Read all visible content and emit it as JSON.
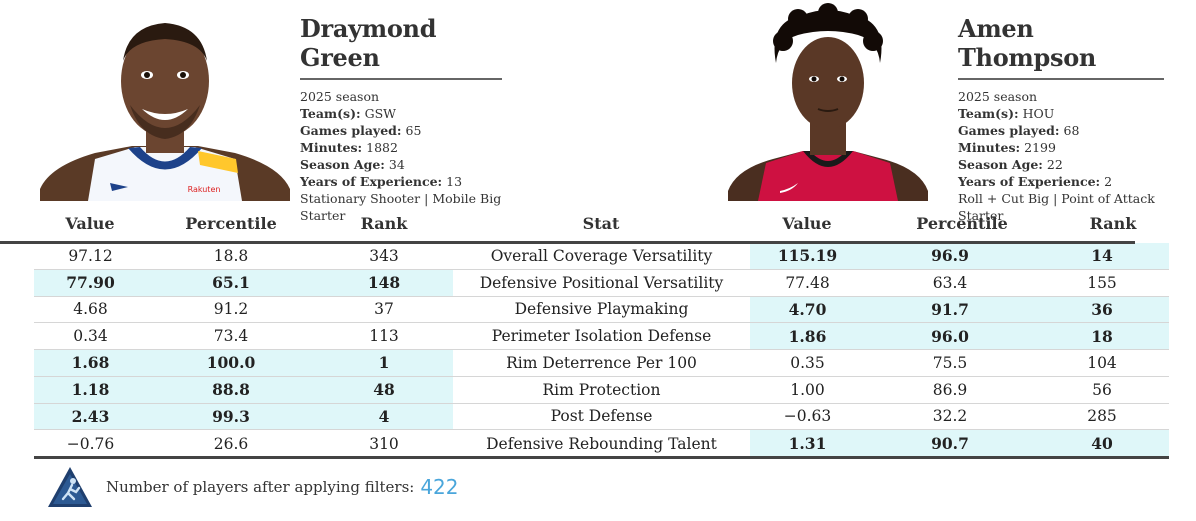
{
  "left_player": {
    "name": "Draymond Green",
    "season": "2025 season",
    "teams_label": "Team(s):",
    "teams": "GSW",
    "games_label": "Games played:",
    "games": "65",
    "minutes_label": "Minutes:",
    "minutes": "1882",
    "age_label": "Season Age:",
    "age": "34",
    "exp_label": "Years of Experience:",
    "exp": "13",
    "archetype": "Stationary Shooter | Mobile Big",
    "role": "Starter",
    "jersey_color": "#f4f7fc",
    "trim_color": "#1d428a",
    "accent_color": "#ffc72c"
  },
  "right_player": {
    "name": "Amen Thompson",
    "season": "2025 season",
    "teams_label": "Team(s):",
    "teams": "HOU",
    "games_label": "Games played:",
    "games": "68",
    "minutes_label": "Minutes:",
    "minutes": "2199",
    "age_label": "Season Age:",
    "age": "22",
    "exp_label": "Years of Experience:",
    "exp": "2",
    "archetype": "Roll + Cut Big | Point of Attack",
    "role": "Starter",
    "jersey_color": "#ce1141"
  },
  "columns": {
    "left_value": "Value",
    "left_percentile": "Percentile",
    "left_rank": "Rank",
    "stat": "Stat",
    "right_value": "Value",
    "right_percentile": "Percentile",
    "right_rank": "Rank"
  },
  "rows": [
    {
      "stat": "Overall Coverage Versatility",
      "l_value": "97.12",
      "l_pct": "18.8",
      "l_rank": "343",
      "r_value": "115.19",
      "r_pct": "96.9",
      "r_rank": "14",
      "winner": "right"
    },
    {
      "stat": "Defensive Positional Versatility",
      "l_value": "77.90",
      "l_pct": "65.1",
      "l_rank": "148",
      "r_value": "77.48",
      "r_pct": "63.4",
      "r_rank": "155",
      "winner": "left"
    },
    {
      "stat": "Defensive Playmaking",
      "l_value": "4.68",
      "l_pct": "91.2",
      "l_rank": "37",
      "r_value": "4.70",
      "r_pct": "91.7",
      "r_rank": "36",
      "winner": "right"
    },
    {
      "stat": "Perimeter Isolation Defense",
      "l_value": "0.34",
      "l_pct": "73.4",
      "l_rank": "113",
      "r_value": "1.86",
      "r_pct": "96.0",
      "r_rank": "18",
      "winner": "right"
    },
    {
      "stat": "Rim Deterrence Per 100",
      "l_value": "1.68",
      "l_pct": "100.0",
      "l_rank": "1",
      "r_value": "0.35",
      "r_pct": "75.5",
      "r_rank": "104",
      "winner": "left"
    },
    {
      "stat": "Rim Protection",
      "l_value": "1.18",
      "l_pct": "88.8",
      "l_rank": "48",
      "r_value": "1.00",
      "r_pct": "86.9",
      "r_rank": "56",
      "winner": "left"
    },
    {
      "stat": "Post Defense",
      "l_value": "2.43",
      "l_pct": "99.3",
      "l_rank": "4",
      "r_value": "−0.63",
      "r_pct": "32.2",
      "r_rank": "285",
      "winner": "left"
    },
    {
      "stat": "Defensive Rebounding Talent",
      "l_value": "−0.76",
      "l_pct": "26.6",
      "l_rank": "310",
      "r_value": "1.31",
      "r_pct": "90.7",
      "r_rank": "40",
      "winner": "right"
    }
  ],
  "highlight_color": "#dff7f9",
  "footer": {
    "label": "Number of players after applying filters:",
    "count": "422",
    "count_color": "#4aa6db",
    "logo_icon": "triangle-player-logo"
  }
}
